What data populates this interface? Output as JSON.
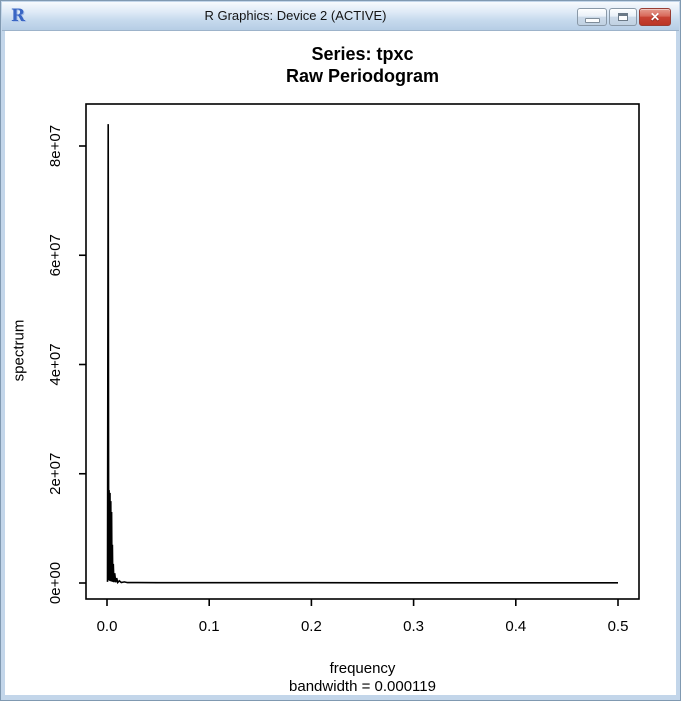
{
  "window": {
    "title": "R Graphics: Device 2 (ACTIVE)",
    "r_logo_letter": "R",
    "close_glyph": "✕"
  },
  "chart_data": {
    "type": "line",
    "title": "Series: tpxc",
    "subtitle": "Raw Periodogram",
    "xlabel": "frequency",
    "xlabel_sub": "bandwidth = 0.000119",
    "ylabel": "spectrum",
    "xlim": [
      0,
      0.5
    ],
    "ylim": [
      0,
      87000000
    ],
    "grid": false,
    "legend": false,
    "line_color": "#000000",
    "x_ticks": [
      0.0,
      0.1,
      0.2,
      0.3,
      0.4,
      0.5
    ],
    "x_tick_labels": [
      "0.0",
      "0.1",
      "0.2",
      "0.3",
      "0.4",
      "0.5"
    ],
    "y_ticks": [
      0,
      20000000,
      40000000,
      60000000,
      80000000
    ],
    "y_tick_labels": [
      "0e+00",
      "2e+07",
      "4e+07",
      "6e+07",
      "8e+07"
    ],
    "series": [
      {
        "name": "tpxc raw periodogram",
        "points": [
          [
            0.0005,
            200000
          ],
          [
            0.0012,
            84000000
          ],
          [
            0.0017,
            500000
          ],
          [
            0.0021,
            17000000
          ],
          [
            0.0025,
            400000
          ],
          [
            0.0029,
            16500000
          ],
          [
            0.0033,
            350000
          ],
          [
            0.0037,
            15000000
          ],
          [
            0.0041,
            300000
          ],
          [
            0.0045,
            13000000
          ],
          [
            0.0049,
            250000
          ],
          [
            0.0053,
            7000000
          ],
          [
            0.0057,
            200000
          ],
          [
            0.0062,
            3500000
          ],
          [
            0.0068,
            150000
          ],
          [
            0.0075,
            1800000
          ],
          [
            0.0085,
            120000
          ],
          [
            0.0095,
            900000
          ],
          [
            0.0105,
            100000
          ],
          [
            0.012,
            400000
          ],
          [
            0.014,
            90000
          ],
          [
            0.017,
            200000
          ],
          [
            0.02,
            80000
          ],
          [
            0.03,
            70000
          ],
          [
            0.05,
            60000
          ],
          [
            0.1,
            55000
          ],
          [
            0.15,
            50000
          ],
          [
            0.2,
            50000
          ],
          [
            0.3,
            45000
          ],
          [
            0.4,
            45000
          ],
          [
            0.5,
            40000
          ]
        ]
      }
    ]
  }
}
